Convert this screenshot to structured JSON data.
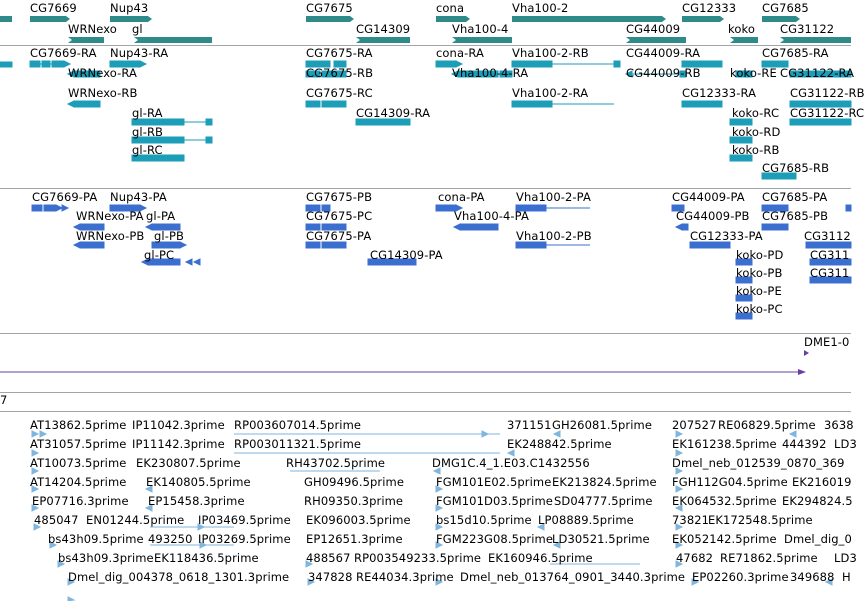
{
  "colors": {
    "gene": "#2e8b8a",
    "transcript": "#1c9db8",
    "protein": "#3a6fd0",
    "ruler": "#6a3fa0",
    "est": "#7fb6dd",
    "divider": "#a4a4a4"
  },
  "gene_track": {
    "labels": [
      "CG7669",
      "Nup43",
      "CG7675",
      "cona",
      "Vha100-2",
      "CG12333",
      "CG7685",
      "WRNexo",
      "gl",
      "CG14309",
      "Vha100-4",
      "CG44009",
      "koko",
      "CG31122"
    ]
  },
  "transcript_track": {
    "labels": [
      "CG7669-RA",
      "Nup43-RA",
      "CG7675-RA",
      "cona-RA",
      "Vha100-2-RB",
      "CG44009-RA",
      "CG7685-RA",
      "WRNexo-RA",
      "CG7675-RB",
      "Vha100-4-RA",
      "CG44009-RB",
      "koko-RE",
      "CG31122-RA",
      "WRNexo-RB",
      "CG7675-RC",
      "Vha100-2-RA",
      "CG12333-RA",
      "CG31122-RB",
      "gl-RA",
      "CG14309-RA",
      "koko-RC",
      "CG31122-RC",
      "gl-RB",
      "koko-RD",
      "gl-RC",
      "koko-RB",
      "CG7685-RB"
    ]
  },
  "protein_track": {
    "labels": [
      "CG7669-PA",
      "Nup43-PA",
      "CG7675-PB",
      "cona-PA",
      "Vha100-2-PA",
      "CG44009-PA",
      "CG7685-PA",
      "WRNexo-PA",
      "gl-PA",
      "CG7675-PC",
      "Vha100-4-PA",
      "CG44009-PB",
      "CG7685-PB",
      "WRNexo-PB",
      "gl-PB",
      "CG7675-PA",
      "Vha100-2-PB",
      "CG12333-PA",
      "CG3112",
      "gl-PC",
      "CG14309-PA",
      "koko-PD",
      "CG311",
      "koko-PB",
      "CG311",
      "koko-PE",
      "koko-PC"
    ]
  },
  "ruler_track": {
    "label": "DME1-0"
  },
  "section_marker": {
    "label": "7"
  },
  "est_track": {
    "labels": [
      "AT13862.5prime",
      "IP11042.3prime",
      "RP003607014.5prime",
      "371151",
      "GH26081.5prime",
      "207527",
      "RE06829.5prime",
      "3638",
      "AT31057.5prime",
      "IP11142.3prime",
      "RP003011321.5prime",
      "EK248842.5prime",
      "EK161238.5prime",
      "444392",
      "LD3",
      "AT10073.5prime",
      "EK230807.5prime",
      "RH43702.5prime",
      "DMG1C.4_1.E03.C1432556",
      "Dmel_neb_012539_0870_369",
      "AT14204.5prime",
      "EK140805.5prime",
      "GH09496.5prime",
      "FGM101E02.5prime",
      "EK213824.5prime",
      "FGH112G04.5prime",
      "EK216019",
      "EP07716.3prime",
      "EP15458.3prime",
      "RH09350.3prime",
      "FGM101D03.5prime",
      "SD04777.5prime",
      "EK064532.5prime",
      "EK294824.5",
      "485047",
      "EN01244.5prime",
      "IP03469.5prime",
      "EK096003.5prime",
      "bs15d10.5prime",
      "LP08889.5prime",
      "73821",
      "EK172548.5prime",
      "bs43h09.5prime",
      "493250",
      "IP03269.5prime",
      "EP12651.3prime",
      "FGM223G08.5prime",
      "LD30521.5prime",
      "EK052142.5prime",
      "Dmel_dig_0",
      "bs43h09.3prime",
      "EK118436.5prime",
      "488567",
      "RP003549233.5prime",
      "EK160946.5prime",
      "47682",
      "RE71862.5prime",
      "LD3",
      "Dmel_dig_004378_0618_1301.3prime",
      "347828",
      "RE44034.3prime",
      "Dmel_neb_013764_0901_3440.3prime",
      "EP02260.3prime",
      "349688",
      "H"
    ]
  }
}
